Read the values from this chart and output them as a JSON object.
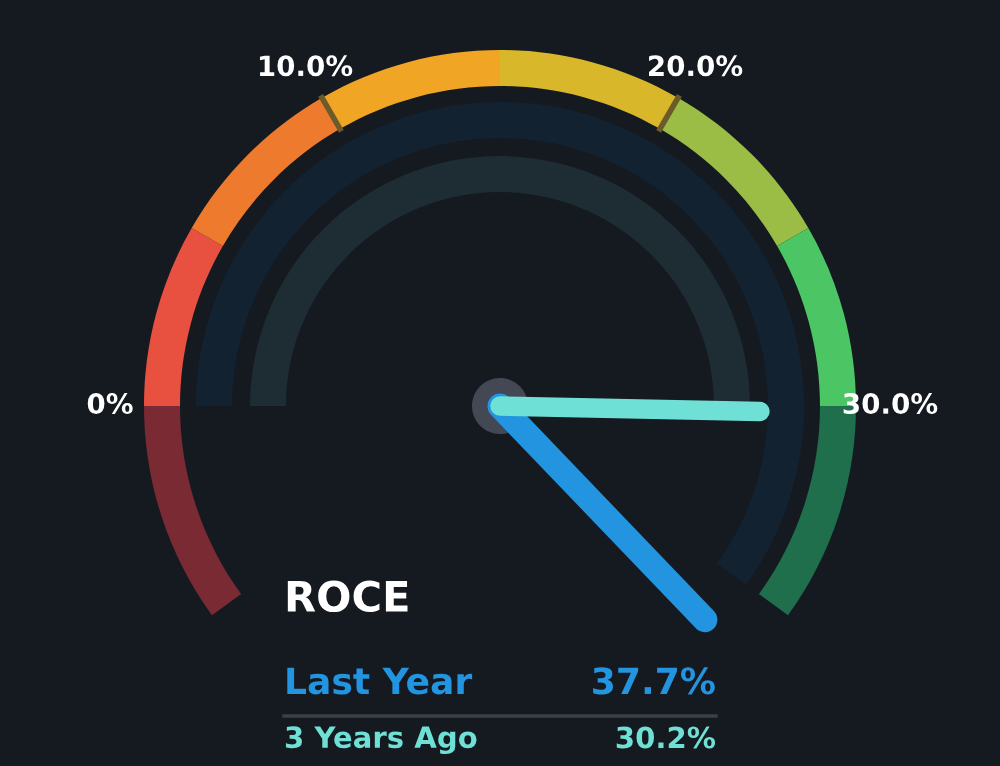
{
  "chart_data": {
    "type": "other",
    "title": "ROCE",
    "annotations": [
      "0%",
      "10.0%",
      "20.0%",
      "30.0%"
    ],
    "categories": [
      "Last Year",
      "3 Years Ago"
    ],
    "values": [
      37.7,
      30.2
    ],
    "value_labels": [
      "37.7%",
      "30.2%"
    ],
    "colors": [
      "#2394df",
      "#6fe0d5"
    ]
  }
}
